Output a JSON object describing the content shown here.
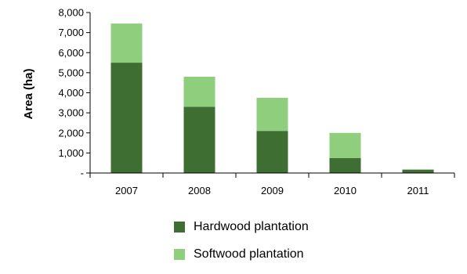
{
  "chart_data": {
    "type": "bar",
    "stacked": true,
    "categories": [
      "2007",
      "2008",
      "2009",
      "2010",
      "2011"
    ],
    "series": [
      {
        "name": "Hardwood plantation",
        "color": "#3e6e31",
        "values": [
          5500,
          3300,
          2100,
          750,
          170
        ]
      },
      {
        "name": "Softwood plantation",
        "color": "#8fce7d",
        "values": [
          1950,
          1500,
          1650,
          1250,
          0
        ]
      }
    ],
    "title": "",
    "xlabel": "",
    "ylabel": "Area (ha)",
    "ylim": [
      0,
      8000
    ],
    "yticks": [
      0,
      1000,
      2000,
      3000,
      4000,
      5000,
      6000,
      7000,
      8000
    ],
    "ytick_labels": [
      "-",
      "1,000",
      "2,000",
      "3,000",
      "4,000",
      "5,000",
      "6,000",
      "7,000",
      "8,000"
    ],
    "grid": false,
    "legend_position": "bottom"
  }
}
